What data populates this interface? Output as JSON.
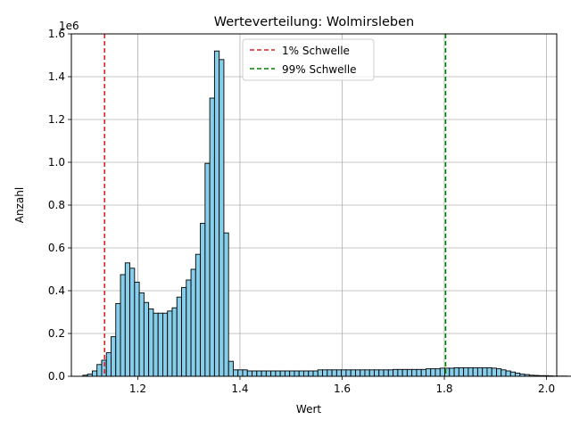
{
  "chart_data": {
    "type": "bar",
    "title": "Werteverteilung: Wolmirsleben",
    "xlabel": "Wert",
    "ylabel": "Anzahl",
    "y_scale_label": "1e6",
    "xlim": [
      1.07,
      2.02
    ],
    "ylim": [
      0,
      1600000
    ],
    "xticks": [
      1.2,
      1.4,
      1.6,
      1.8,
      2.0
    ],
    "xtick_labels": [
      "1.2",
      "1.4",
      "1.6",
      "1.8",
      "2.0"
    ],
    "yticks": [
      0,
      200000,
      400000,
      600000,
      800000,
      1000000,
      1200000,
      1400000,
      1600000
    ],
    "ytick_labels": [
      "0.0",
      "0.2",
      "0.4",
      "0.6",
      "0.8",
      "1.0",
      "1.2",
      "1.4",
      "1.6"
    ],
    "grid": true,
    "bar_color": "#87CEEB",
    "bar_edge_color": "#000000",
    "bin_start": 1.0925,
    "bin_width": 0.0092,
    "values": [
      5000,
      10000,
      25000,
      55000,
      75000,
      110000,
      185000,
      340000,
      475000,
      530000,
      505000,
      440000,
      390000,
      345000,
      315000,
      295000,
      295000,
      295000,
      305000,
      320000,
      370000,
      415000,
      450000,
      500000,
      570000,
      715000,
      995000,
      1300000,
      1520000,
      1480000,
      670000,
      70000,
      30000,
      30000,
      30000,
      25000,
      25000,
      25000,
      25000,
      25000,
      25000,
      25000,
      25000,
      25000,
      25000,
      25000,
      25000,
      25000,
      25000,
      25000,
      30000,
      30000,
      30000,
      30000,
      30000,
      30000,
      30000,
      30000,
      30000,
      30000,
      30000,
      30000,
      30000,
      30000,
      30000,
      30000,
      32000,
      32000,
      32000,
      32000,
      32000,
      32000,
      32000,
      35000,
      35000,
      35000,
      38000,
      38000,
      38000,
      40000,
      40000,
      40000,
      40000,
      40000,
      40000,
      40000,
      40000,
      38000,
      35000,
      30000,
      25000,
      20000,
      15000,
      10000,
      8000,
      5000,
      4000,
      3000,
      3000,
      2000,
      1000,
      1000,
      1000,
      500,
      500,
      500,
      500,
      500,
      500,
      500,
      500,
      500,
      500
    ],
    "thresholds": [
      {
        "name": "1% Schwelle",
        "value": 1.135,
        "color": "#d62728"
      },
      {
        "name": "99% Schwelle",
        "value": 1.8025,
        "color": "#008000"
      }
    ],
    "legend_position": "top-center"
  }
}
